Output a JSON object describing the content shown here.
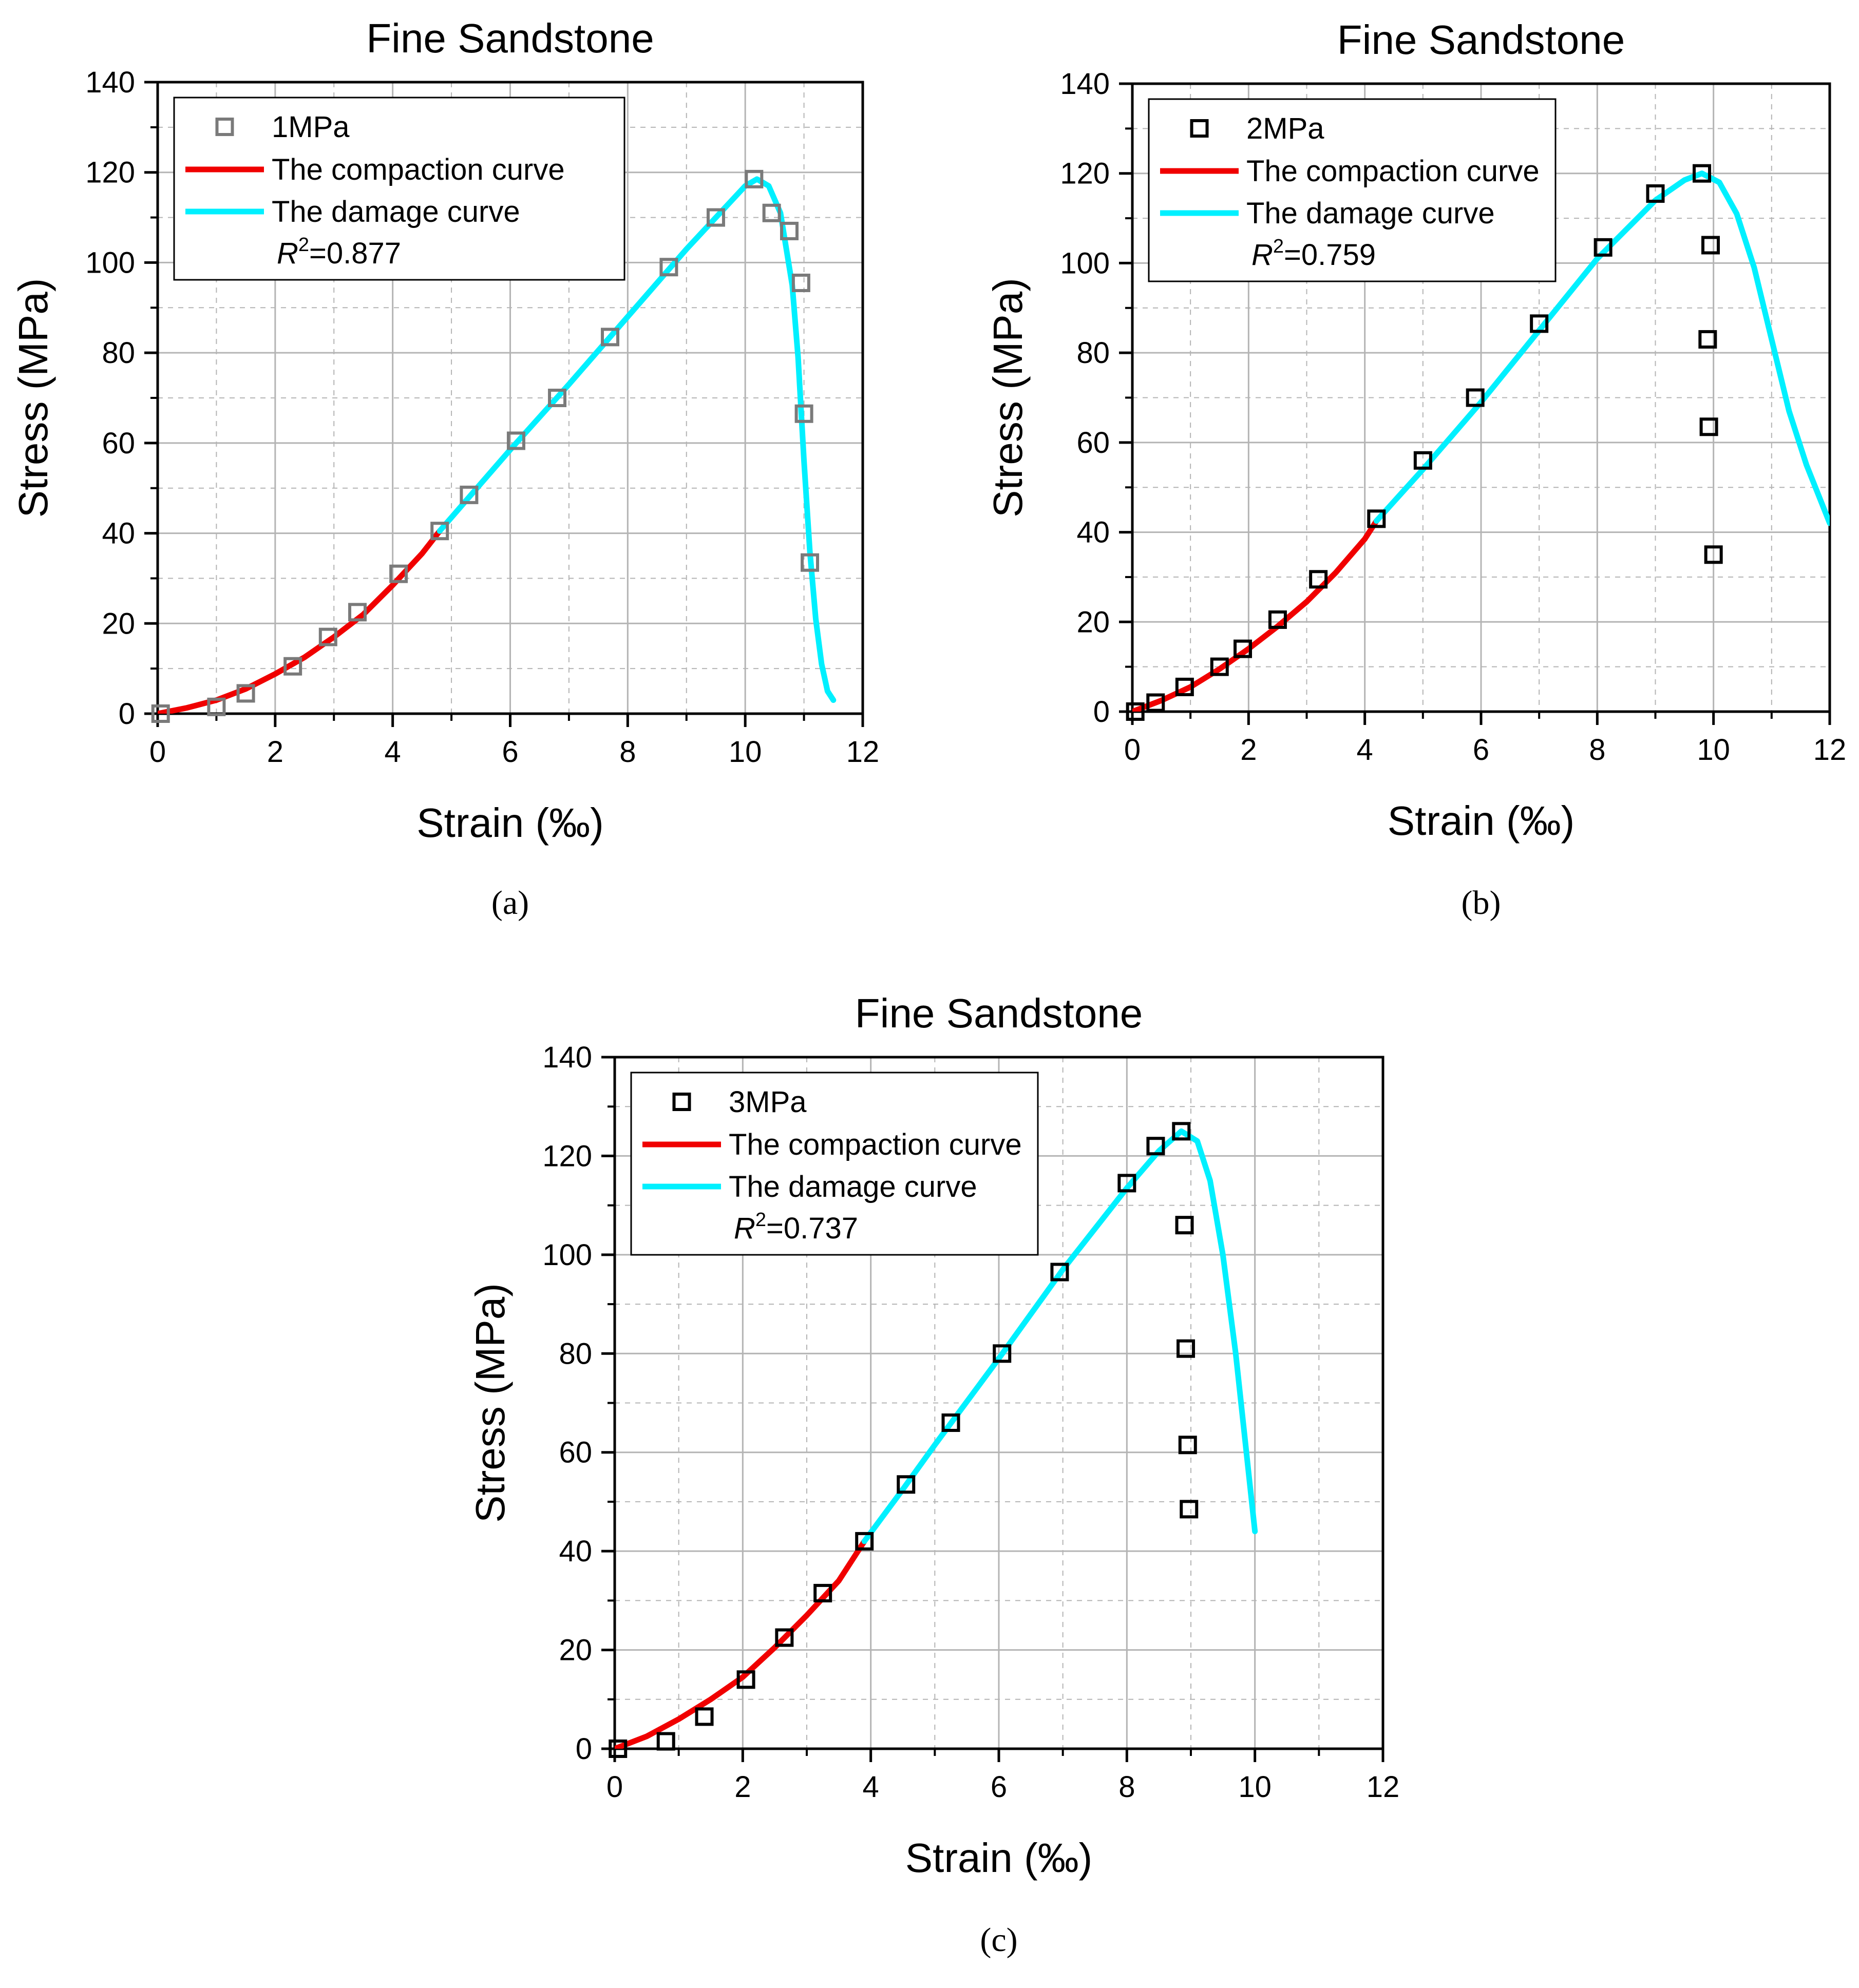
{
  "colors": {
    "compaction": "#f00000",
    "damage": "#00f0ff",
    "marker_gray": "#7a7a7a",
    "marker_black": "#000000",
    "grid": "#b4b4b4",
    "axis": "#000000"
  },
  "chart_data": [
    {
      "type": "line",
      "panel": "a",
      "caption": "(a)",
      "title": "Fine Sandstone",
      "xlabel": "Strain (‰)",
      "ylabel": "Stress (MPa)",
      "xlim": [
        0,
        12
      ],
      "ylim": [
        0,
        140
      ],
      "xticks": [
        0,
        2,
        4,
        6,
        8,
        10,
        12
      ],
      "yticks": [
        0,
        20,
        40,
        60,
        80,
        100,
        120,
        140
      ],
      "grid": true,
      "legend_position": "top-left",
      "legend": {
        "marker_label": "1MPa",
        "compaction_label": "The compaction curve",
        "damage_label": "The damage curve",
        "r2_symbol": "R",
        "r2_sup": "2",
        "r2_value": "=0.877"
      },
      "marker_color": "gray",
      "series": [
        {
          "name": "1MPa",
          "kind": "scatter",
          "x": [
            0.05,
            1.0,
            1.5,
            2.3,
            2.9,
            3.4,
            4.1,
            4.8,
            5.3,
            6.1,
            6.8,
            7.7,
            8.7,
            9.5,
            10.15,
            10.45,
            10.75,
            10.95,
            11.0,
            11.1
          ],
          "y": [
            0,
            1.5,
            4.5,
            10.5,
            17,
            22.5,
            31,
            40.5,
            48.5,
            60.5,
            70,
            83.5,
            99,
            110,
            118.5,
            111,
            107,
            95.5,
            66.5,
            33.5
          ]
        },
        {
          "name": "The compaction curve",
          "kind": "line",
          "x": [
            0,
            0.5,
            1,
            1.5,
            2,
            2.5,
            3,
            3.5,
            4,
            4.5,
            4.8
          ],
          "y": [
            0,
            1.3,
            3,
            5.5,
            8.8,
            12.5,
            17,
            22,
            28.5,
            35.5,
            40.5
          ]
        },
        {
          "name": "The damage curve",
          "kind": "line",
          "x": [
            4.8,
            5.5,
            6,
            7,
            8,
            9,
            9.5,
            10,
            10.2,
            10.4,
            10.6,
            10.8,
            10.9,
            11.0,
            11.1,
            11.2,
            11.3,
            11.4,
            11.5
          ],
          "y": [
            40.5,
            51,
            58.5,
            73,
            88,
            103,
            110,
            117,
            118.5,
            117,
            111,
            95,
            79,
            56,
            36,
            21,
            11,
            5,
            3
          ]
        }
      ]
    },
    {
      "type": "line",
      "panel": "b",
      "caption": "(b)",
      "title": "Fine Sandstone",
      "xlabel": "Strain (‰)",
      "ylabel": "Stress (MPa)",
      "xlim": [
        0,
        12
      ],
      "ylim": [
        0,
        140
      ],
      "xticks": [
        0,
        2,
        4,
        6,
        8,
        10,
        12
      ],
      "yticks": [
        0,
        20,
        40,
        60,
        80,
        100,
        120,
        140
      ],
      "grid": true,
      "legend_position": "top-left",
      "legend": {
        "marker_label": "2MPa",
        "compaction_label": "The compaction curve",
        "damage_label": "The damage curve",
        "r2_symbol": "R",
        "r2_sup": "2",
        "r2_value": "=0.759"
      },
      "marker_color": "black",
      "series": [
        {
          "name": "2MPa",
          "kind": "scatter",
          "x": [
            0.05,
            0.4,
            0.9,
            1.5,
            1.9,
            2.5,
            3.2,
            4.2,
            5.0,
            5.9,
            7.0,
            8.1,
            9.0,
            9.8,
            9.95,
            9.9,
            9.92,
            10.0
          ],
          "y": [
            0,
            2,
            5.5,
            10,
            14,
            20.5,
            29.5,
            43,
            56,
            70,
            86.5,
            103.5,
            115.5,
            120,
            104,
            83,
            63.5,
            35
          ]
        },
        {
          "name": "The compaction curve",
          "kind": "line",
          "x": [
            0,
            0.5,
            1,
            1.5,
            2,
            2.5,
            3,
            3.5,
            4,
            4.2
          ],
          "y": [
            0,
            2.5,
            5.5,
            9.5,
            14,
            19,
            24.5,
            31,
            38.5,
            42.5
          ]
        },
        {
          "name": "The damage curve",
          "kind": "line",
          "x": [
            4.2,
            5,
            6,
            7,
            8,
            9,
            9.5,
            9.8,
            10.1,
            10.4,
            10.7,
            11,
            11.3,
            11.6,
            12
          ],
          "y": [
            42.5,
            54,
            69,
            85,
            101,
            114,
            118.5,
            120,
            118,
            111,
            99,
            83,
            67,
            55,
            42
          ]
        }
      ]
    },
    {
      "type": "line",
      "panel": "c",
      "caption": "(c)",
      "title": "Fine Sandstone",
      "xlabel": "Strain (‰)",
      "ylabel": "Stress (MPa)",
      "xlim": [
        0,
        12
      ],
      "ylim": [
        0,
        140
      ],
      "xticks": [
        0,
        2,
        4,
        6,
        8,
        10,
        12
      ],
      "yticks": [
        0,
        20,
        40,
        60,
        80,
        100,
        120,
        140
      ],
      "grid": true,
      "legend_position": "top-left",
      "legend": {
        "marker_label": "3MPa",
        "compaction_label": "The compaction curve",
        "damage_label": "The damage curve",
        "r2_symbol": "R",
        "r2_sup": "2",
        "r2_value": "=0.737"
      },
      "marker_color": "black",
      "series": [
        {
          "name": "3MPa",
          "kind": "scatter",
          "x": [
            0.05,
            0.8,
            1.4,
            2.05,
            2.65,
            3.25,
            3.9,
            4.55,
            5.25,
            6.05,
            6.95,
            8.0,
            8.45,
            8.85,
            8.9,
            8.92,
            8.95,
            8.97
          ],
          "y": [
            0,
            1.5,
            6.5,
            14,
            22.5,
            31.5,
            42,
            53.5,
            66,
            80,
            96.5,
            114.5,
            122,
            125,
            106,
            81,
            61.5,
            48.5
          ]
        },
        {
          "name": "The compaction curve",
          "kind": "line",
          "x": [
            0,
            0.5,
            1,
            1.5,
            2,
            2.5,
            3,
            3.5,
            3.9
          ],
          "y": [
            0,
            2.5,
            6,
            10,
            14.5,
            20.5,
            27,
            34,
            42
          ]
        },
        {
          "name": "The damage curve",
          "kind": "line",
          "x": [
            3.9,
            4.5,
            5,
            6,
            7,
            8,
            8.5,
            8.85,
            9.1,
            9.3,
            9.5,
            9.7,
            9.85,
            10.0
          ],
          "y": [
            42,
            52.5,
            61.5,
            79,
            97,
            113.5,
            121,
            125,
            123,
            115,
            100,
            80,
            62,
            44
          ]
        }
      ]
    }
  ]
}
